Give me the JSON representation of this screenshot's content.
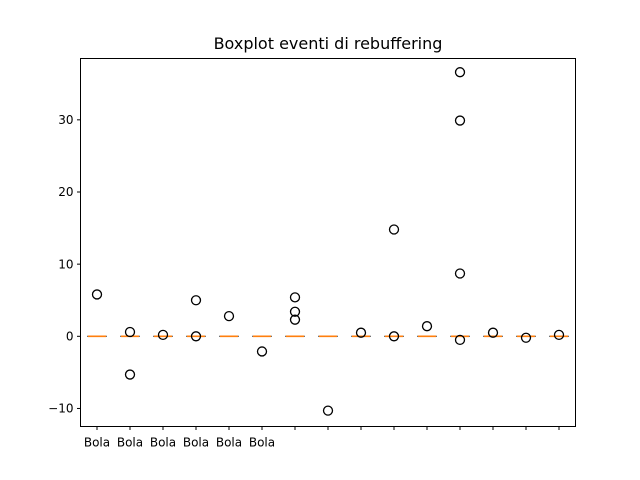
{
  "chart_data": {
    "type": "boxplot",
    "title": "Boxplot eventi di rebuffering",
    "xlabel": "",
    "ylabel": "",
    "ylim": [
      -12.5,
      38.5
    ],
    "yticks": [
      -10,
      0,
      10,
      20,
      30
    ],
    "ytick_labels": [
      "−10",
      "0",
      "10",
      "20",
      "30"
    ],
    "n_boxes": 15,
    "xtick_labels": [
      "Bola",
      "Bola",
      "Bola",
      "Bola",
      "Bola",
      "Bola"
    ],
    "median_color": "#ff7f0e",
    "outlier_color": "#000000",
    "boxes": [
      {
        "median": 0,
        "q1": 0,
        "q3": 0,
        "whisker_low": 0,
        "whisker_high": 0,
        "outliers": [
          5.8
        ]
      },
      {
        "median": 0,
        "q1": 0,
        "q3": 0,
        "whisker_low": 0,
        "whisker_high": 0,
        "outliers": [
          0.6,
          -5.3
        ]
      },
      {
        "median": 0,
        "q1": 0,
        "q3": 0,
        "whisker_low": 0,
        "whisker_high": 0,
        "outliers": [
          0.2
        ]
      },
      {
        "median": 0,
        "q1": 0,
        "q3": 0,
        "whisker_low": 0,
        "whisker_high": 0,
        "outliers": [
          5.0,
          0.0
        ]
      },
      {
        "median": 0,
        "q1": 0,
        "q3": 0,
        "whisker_low": 0,
        "whisker_high": 0,
        "outliers": [
          2.8
        ]
      },
      {
        "median": 0,
        "q1": 0,
        "q3": 0,
        "whisker_low": 0,
        "whisker_high": 0,
        "outliers": [
          -2.1
        ]
      },
      {
        "median": 0,
        "q1": 0,
        "q3": 0,
        "whisker_low": 0,
        "whisker_high": 0,
        "outliers": [
          5.4,
          3.4,
          2.3
        ]
      },
      {
        "median": 0,
        "q1": 0,
        "q3": 0,
        "whisker_low": 0,
        "whisker_high": 0,
        "outliers": [
          -10.3
        ]
      },
      {
        "median": 0,
        "q1": 0,
        "q3": 0,
        "whisker_low": 0,
        "whisker_high": 0,
        "outliers": [
          0.5
        ]
      },
      {
        "median": 0,
        "q1": 0,
        "q3": 0,
        "whisker_low": 0,
        "whisker_high": 0,
        "outliers": [
          14.8,
          0.0
        ]
      },
      {
        "median": 0,
        "q1": 0,
        "q3": 0,
        "whisker_low": 0,
        "whisker_high": 0,
        "outliers": [
          1.4
        ]
      },
      {
        "median": 0,
        "q1": 0,
        "q3": 0,
        "whisker_low": 0,
        "whisker_high": 0,
        "outliers": [
          36.6,
          29.9,
          8.7,
          -0.5
        ]
      },
      {
        "median": 0,
        "q1": 0,
        "q3": 0,
        "whisker_low": 0,
        "whisker_high": 0,
        "outliers": [
          0.5
        ]
      },
      {
        "median": 0,
        "q1": 0,
        "q3": 0,
        "whisker_low": 0,
        "whisker_high": 0,
        "outliers": [
          -0.2
        ]
      },
      {
        "median": 0,
        "q1": 0,
        "q3": 0,
        "whisker_low": 0,
        "whisker_high": 0,
        "outliers": [
          0.2
        ]
      }
    ]
  }
}
